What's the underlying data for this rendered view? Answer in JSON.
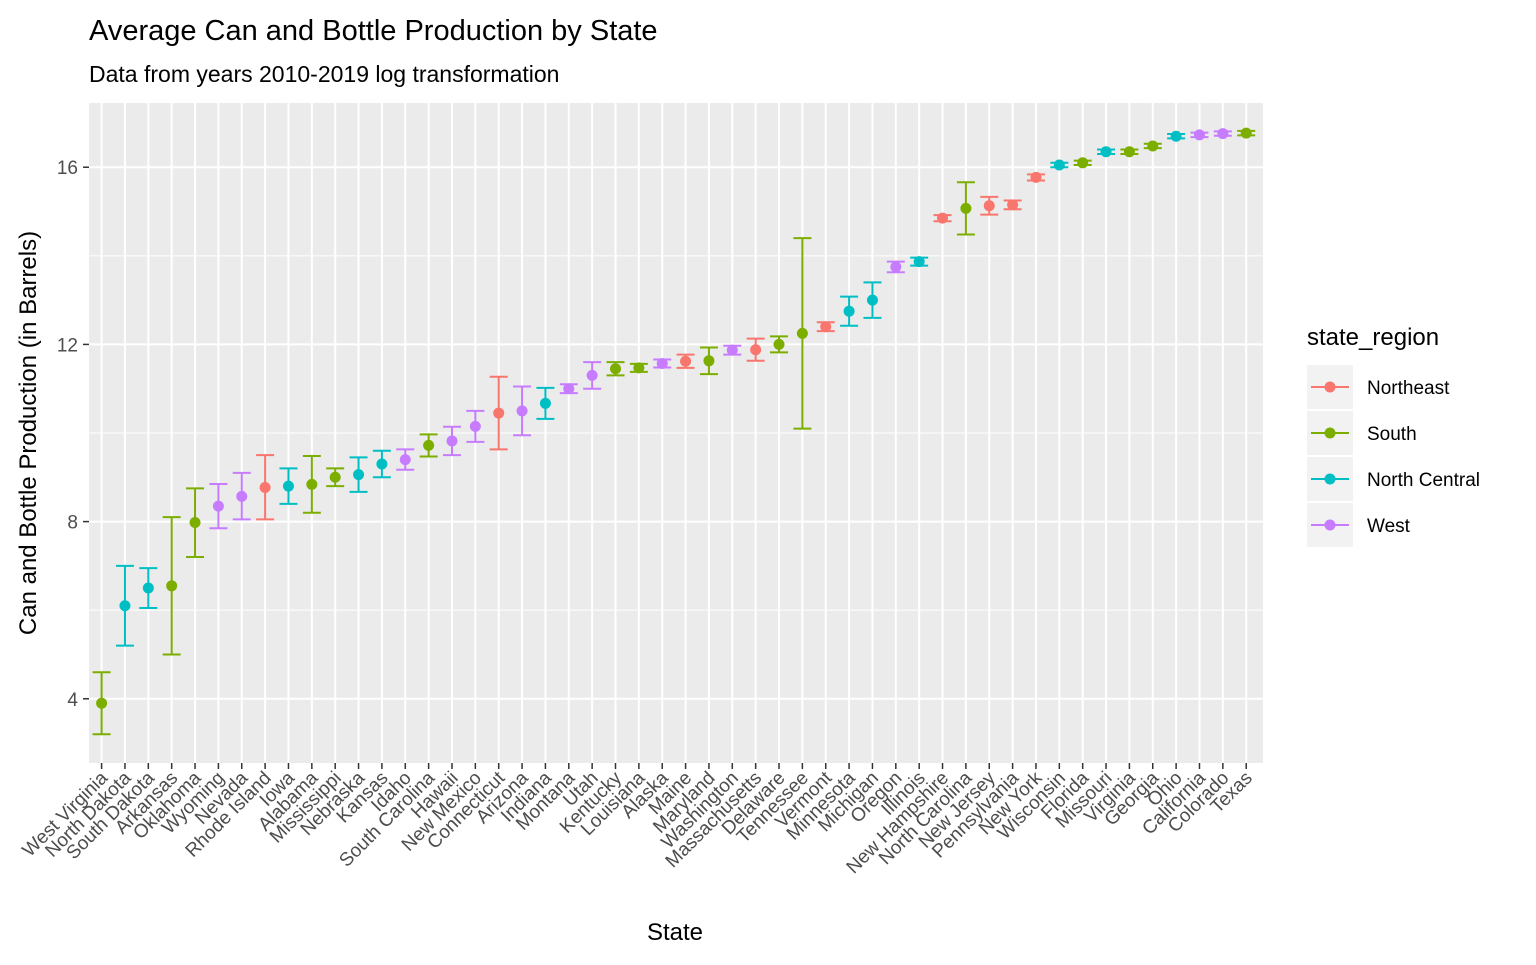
{
  "chart_data": {
    "type": "scatter",
    "title": "Average Can and Bottle Production by State",
    "subtitle": "Data from years 2010-2019 log transformation",
    "xlabel": "State",
    "ylabel": "Can and Bottle Production (in Barrels)",
    "ylim": [
      2.55,
      17.45
    ],
    "yticks": [
      4,
      8,
      12,
      16
    ],
    "grid": true,
    "legend": {
      "title": "state_region",
      "placement": "right",
      "entries": [
        {
          "name": "Northeast",
          "color": "#F8766D"
        },
        {
          "name": "South",
          "color": "#7CAE00"
        },
        {
          "name": "North Central",
          "color": "#00BFC4"
        },
        {
          "name": "West",
          "color": "#C77CFF"
        }
      ]
    },
    "points": [
      {
        "state": "West Virginia",
        "region": "South",
        "mean": 3.9,
        "low": 3.2,
        "high": 4.6
      },
      {
        "state": "North Dakota",
        "region": "North Central",
        "mean": 6.1,
        "low": 5.2,
        "high": 7.0
      },
      {
        "state": "South Dakota",
        "region": "North Central",
        "mean": 6.5,
        "low": 6.05,
        "high": 6.95
      },
      {
        "state": "Arkansas",
        "region": "South",
        "mean": 6.55,
        "low": 5.0,
        "high": 8.1
      },
      {
        "state": "Oklahoma",
        "region": "South",
        "mean": 7.98,
        "low": 7.2,
        "high": 8.75
      },
      {
        "state": "Wyoming",
        "region": "West",
        "mean": 8.35,
        "low": 7.85,
        "high": 8.85
      },
      {
        "state": "Nevada",
        "region": "West",
        "mean": 8.57,
        "low": 8.05,
        "high": 9.1
      },
      {
        "state": "Rhode Island",
        "region": "Northeast",
        "mean": 8.77,
        "low": 8.05,
        "high": 9.5
      },
      {
        "state": "Iowa",
        "region": "North Central",
        "mean": 8.8,
        "low": 8.4,
        "high": 9.2
      },
      {
        "state": "Alabama",
        "region": "South",
        "mean": 8.84,
        "low": 8.2,
        "high": 9.48
      },
      {
        "state": "Mississippi",
        "region": "South",
        "mean": 9.0,
        "low": 8.8,
        "high": 9.2
      },
      {
        "state": "Nebraska",
        "region": "North Central",
        "mean": 9.06,
        "low": 8.67,
        "high": 9.45
      },
      {
        "state": "Kansas",
        "region": "North Central",
        "mean": 9.3,
        "low": 9.0,
        "high": 9.6
      },
      {
        "state": "Idaho",
        "region": "West",
        "mean": 9.4,
        "low": 9.17,
        "high": 9.63
      },
      {
        "state": "South Carolina",
        "region": "South",
        "mean": 9.72,
        "low": 9.47,
        "high": 9.97
      },
      {
        "state": "Hawaii",
        "region": "West",
        "mean": 9.82,
        "low": 9.5,
        "high": 10.14
      },
      {
        "state": "New Mexico",
        "region": "West",
        "mean": 10.15,
        "low": 9.8,
        "high": 10.5
      },
      {
        "state": "Connecticut",
        "region": "Northeast",
        "mean": 10.45,
        "low": 9.63,
        "high": 11.27
      },
      {
        "state": "Arizona",
        "region": "West",
        "mean": 10.5,
        "low": 9.95,
        "high": 11.05
      },
      {
        "state": "Indiana",
        "region": "North Central",
        "mean": 10.67,
        "low": 10.32,
        "high": 11.02
      },
      {
        "state": "Montana",
        "region": "West",
        "mean": 11.0,
        "low": 10.9,
        "high": 11.1
      },
      {
        "state": "Utah",
        "region": "West",
        "mean": 11.3,
        "low": 11.0,
        "high": 11.6
      },
      {
        "state": "Kentucky",
        "region": "South",
        "mean": 11.45,
        "low": 11.3,
        "high": 11.6
      },
      {
        "state": "Louisiana",
        "region": "South",
        "mean": 11.47,
        "low": 11.38,
        "high": 11.56
      },
      {
        "state": "Alaska",
        "region": "West",
        "mean": 11.57,
        "low": 11.48,
        "high": 11.66
      },
      {
        "state": "Maine",
        "region": "Northeast",
        "mean": 11.62,
        "low": 11.47,
        "high": 11.77
      },
      {
        "state": "Maryland",
        "region": "South",
        "mean": 11.63,
        "low": 11.33,
        "high": 11.93
      },
      {
        "state": "Washington",
        "region": "West",
        "mean": 11.87,
        "low": 11.77,
        "high": 11.97
      },
      {
        "state": "Massachusetts",
        "region": "Northeast",
        "mean": 11.88,
        "low": 11.63,
        "high": 12.13
      },
      {
        "state": "Delaware",
        "region": "South",
        "mean": 12.0,
        "low": 11.82,
        "high": 12.18
      },
      {
        "state": "Tennessee",
        "region": "South",
        "mean": 12.25,
        "low": 10.1,
        "high": 14.4
      },
      {
        "state": "Vermont",
        "region": "Northeast",
        "mean": 12.4,
        "low": 12.3,
        "high": 12.5
      },
      {
        "state": "Minnesota",
        "region": "North Central",
        "mean": 12.75,
        "low": 12.42,
        "high": 13.08
      },
      {
        "state": "Michigan",
        "region": "North Central",
        "mean": 13.0,
        "low": 12.6,
        "high": 13.4
      },
      {
        "state": "Oregon",
        "region": "West",
        "mean": 13.75,
        "low": 13.63,
        "high": 13.87
      },
      {
        "state": "Illinois",
        "region": "North Central",
        "mean": 13.87,
        "low": 13.78,
        "high": 13.96
      },
      {
        "state": "New Hampshire",
        "region": "Northeast",
        "mean": 14.85,
        "low": 14.78,
        "high": 14.92
      },
      {
        "state": "North Carolina",
        "region": "South",
        "mean": 15.07,
        "low": 14.48,
        "high": 15.66
      },
      {
        "state": "New Jersey",
        "region": "Northeast",
        "mean": 15.13,
        "low": 14.93,
        "high": 15.33
      },
      {
        "state": "Pennsylvania",
        "region": "Northeast",
        "mean": 15.15,
        "low": 15.05,
        "high": 15.25
      },
      {
        "state": "New York",
        "region": "Northeast",
        "mean": 15.77,
        "low": 15.7,
        "high": 15.84
      },
      {
        "state": "Wisconsin",
        "region": "North Central",
        "mean": 16.05,
        "low": 16.0,
        "high": 16.1
      },
      {
        "state": "Florida",
        "region": "South",
        "mean": 16.1,
        "low": 16.05,
        "high": 16.15
      },
      {
        "state": "Missouri",
        "region": "North Central",
        "mean": 16.35,
        "low": 16.3,
        "high": 16.4
      },
      {
        "state": "Virginia",
        "region": "South",
        "mean": 16.35,
        "low": 16.3,
        "high": 16.4
      },
      {
        "state": "Georgia",
        "region": "South",
        "mean": 16.48,
        "low": 16.43,
        "high": 16.53
      },
      {
        "state": "Ohio",
        "region": "North Central",
        "mean": 16.7,
        "low": 16.65,
        "high": 16.75
      },
      {
        "state": "California",
        "region": "West",
        "mean": 16.73,
        "low": 16.68,
        "high": 16.78
      },
      {
        "state": "Colorado",
        "region": "West",
        "mean": 16.76,
        "low": 16.71,
        "high": 16.81
      },
      {
        "state": "Texas",
        "region": "South",
        "mean": 16.77,
        "low": 16.72,
        "high": 16.82
      }
    ]
  }
}
